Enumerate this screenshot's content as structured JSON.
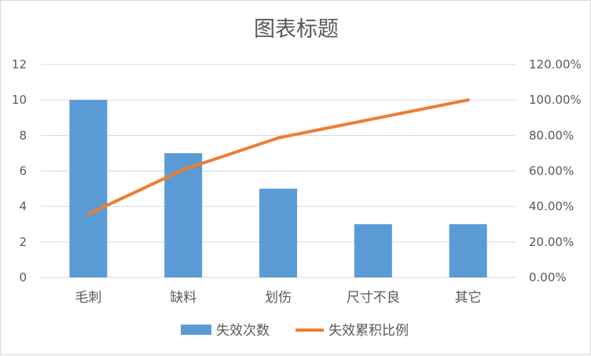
{
  "chart_data": {
    "type": "bar",
    "title": "图表标题",
    "categories": [
      "毛刺",
      "缺料",
      "划伤",
      "尺寸不良",
      "其它"
    ],
    "series": [
      {
        "name": "失效次数",
        "kind": "bar",
        "axis": "left",
        "values": [
          10,
          7,
          5,
          3,
          3
        ]
      },
      {
        "name": "失效累积比例",
        "kind": "line",
        "axis": "right",
        "values": [
          0.357,
          0.607,
          0.786,
          0.893,
          1.0
        ]
      }
    ],
    "y_left": {
      "ylim": [
        0,
        12
      ],
      "ticks": [
        "0",
        "2",
        "4",
        "6",
        "8",
        "10",
        "12"
      ]
    },
    "y_right": {
      "ylim": [
        0,
        1.2
      ],
      "ticks": [
        "0.00%",
        "20.00%",
        "40.00%",
        "60.00%",
        "80.00%",
        "100.00%",
        "120.00%"
      ]
    },
    "grid": true,
    "legend": "bottom",
    "colors": {
      "bar": "#5b9bd5",
      "line": "#ed7d31",
      "grid": "#d9d9d9",
      "text": "#595959"
    }
  }
}
